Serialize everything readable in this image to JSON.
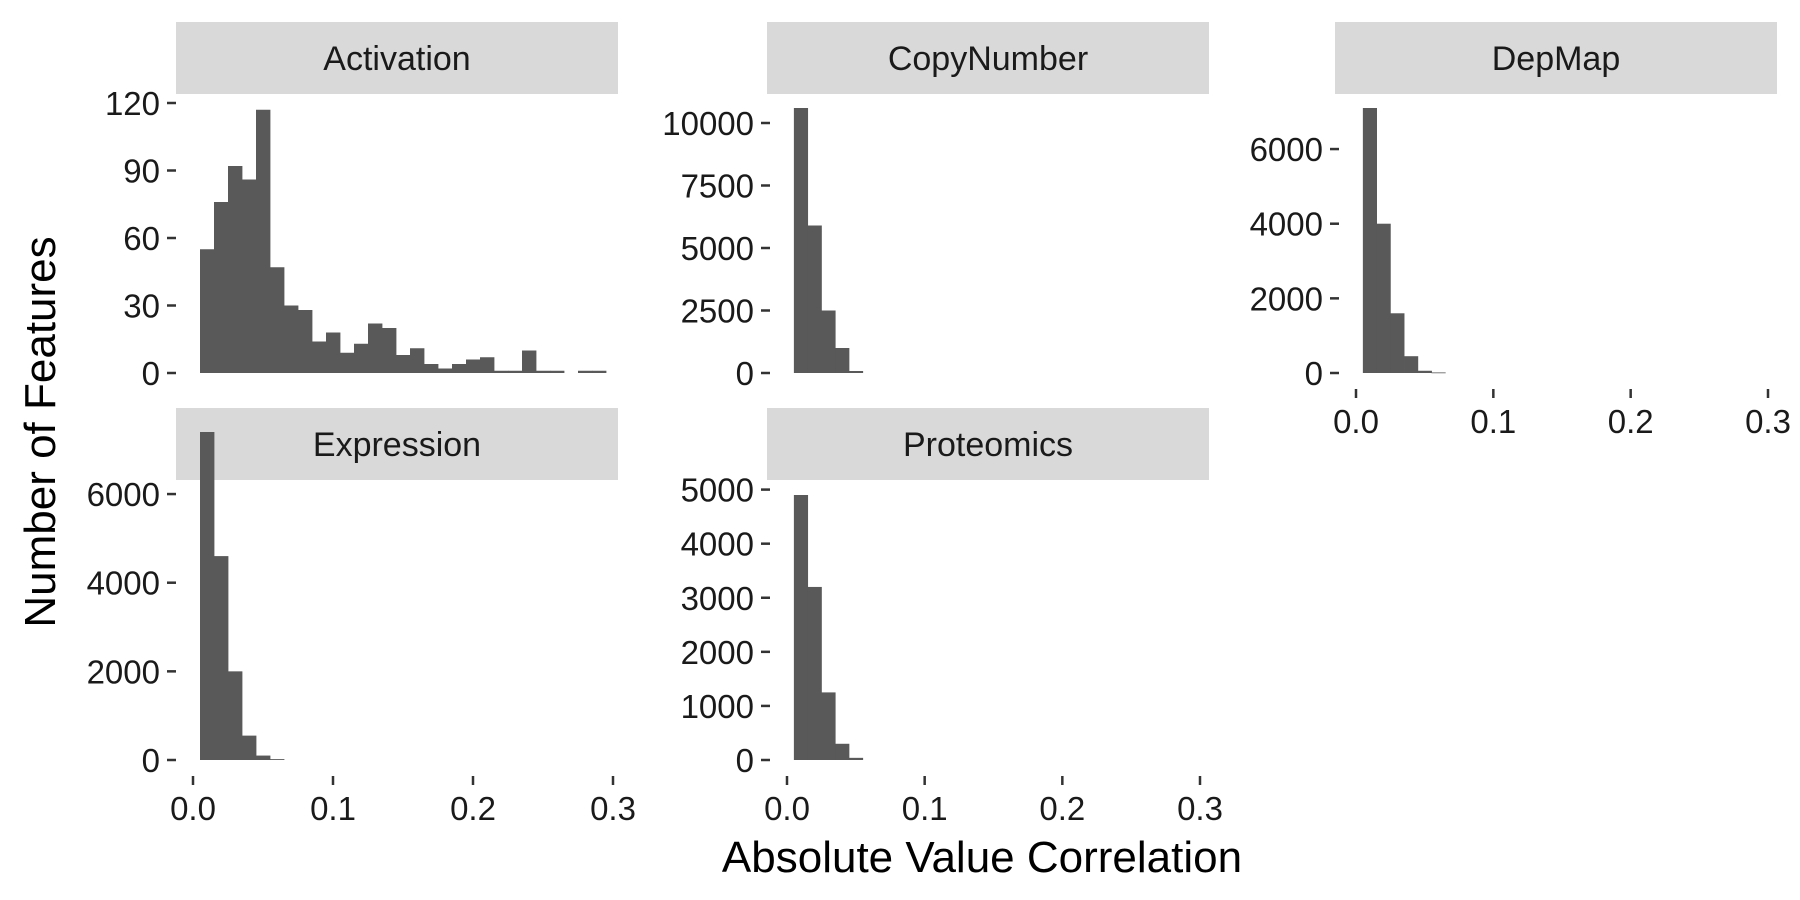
{
  "chart_data": {
    "type": "bar",
    "layout": "faceted histograms",
    "xlabel": "Absolute Value Correlation",
    "ylabel": "Number of Features",
    "x_ticks": [
      "0.0",
      "0.1",
      "0.2",
      "0.3"
    ],
    "x_tick_values": [
      0.0,
      0.1,
      0.2,
      0.3
    ],
    "xlim": [
      0,
      0.3
    ],
    "bin_width": 0.01,
    "grid": false,
    "bar_color": "#595959",
    "strip_color": "#d9d9d9",
    "facets": [
      {
        "name": "Activation",
        "ylim": [
          0,
          120
        ],
        "y_ticks": [
          "0",
          "30",
          "60",
          "90",
          "120"
        ],
        "y_tick_values": [
          0,
          30,
          60,
          90,
          120
        ],
        "bins_start": [
          0.005,
          0.015,
          0.025,
          0.035,
          0.045,
          0.055,
          0.065,
          0.075,
          0.085,
          0.095,
          0.105,
          0.115,
          0.125,
          0.135,
          0.145,
          0.155,
          0.165,
          0.175,
          0.185,
          0.195,
          0.205,
          0.215,
          0.225,
          0.235,
          0.245,
          0.255,
          0.265,
          0.275,
          0.285
        ],
        "counts": [
          55,
          76,
          92,
          86,
          117,
          47,
          30,
          28,
          14,
          18,
          9,
          13,
          22,
          20,
          8,
          11,
          4,
          2,
          4,
          6,
          7,
          1,
          1,
          10,
          1,
          1,
          0,
          1,
          1
        ]
      },
      {
        "name": "CopyNumber",
        "ylim": [
          0,
          10600
        ],
        "y_ticks": [
          "0",
          "2500",
          "5000",
          "7500",
          "10000"
        ],
        "y_tick_values": [
          0,
          2500,
          5000,
          7500,
          10000
        ],
        "bins_start": [
          0.005,
          0.015,
          0.025,
          0.035,
          0.045
        ],
        "counts": [
          10600,
          5900,
          2500,
          1000,
          80
        ]
      },
      {
        "name": "DepMap",
        "ylim": [
          0,
          7100
        ],
        "y_ticks": [
          "0",
          "2000",
          "4000",
          "6000"
        ],
        "y_tick_values": [
          0,
          2000,
          4000,
          6000
        ],
        "bins_start": [
          0.005,
          0.015,
          0.025,
          0.035,
          0.045,
          0.055
        ],
        "counts": [
          7100,
          4000,
          1600,
          450,
          60,
          15
        ]
      },
      {
        "name": "Expression",
        "ylim": [
          0,
          7400
        ],
        "y_ticks": [
          "0",
          "2000",
          "4000",
          "6000"
        ],
        "y_tick_values": [
          0,
          2000,
          4000,
          6000
        ],
        "bins_start": [
          0.005,
          0.015,
          0.025,
          0.035,
          0.045,
          0.055
        ],
        "counts": [
          7400,
          4600,
          2000,
          550,
          100,
          20
        ]
      },
      {
        "name": "Proteomics",
        "ylim": [
          0,
          4900
        ],
        "y_ticks": [
          "0",
          "1000",
          "2000",
          "3000",
          "4000",
          "5000"
        ],
        "y_tick_values": [
          0,
          1000,
          2000,
          3000,
          4000,
          5000
        ],
        "bins_start": [
          0.005,
          0.015,
          0.025,
          0.035,
          0.045
        ],
        "counts": [
          4900,
          3200,
          1250,
          300,
          40
        ]
      }
    ]
  }
}
